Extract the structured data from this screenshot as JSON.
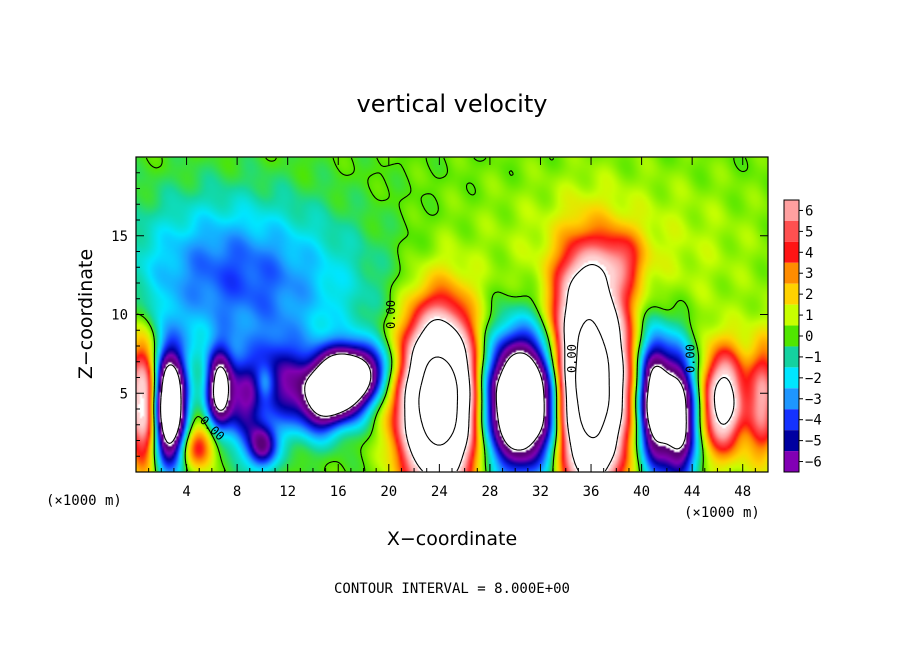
{
  "chart_data": {
    "type": "heatmap",
    "title": "vertical velocity",
    "xlabel": "X−coordinate",
    "ylabel": "Z−coordinate",
    "x_unit_left": "(×1000 m)",
    "x_unit_right": "(×1000 m)",
    "xlim": [
      0,
      50
    ],
    "ylim": [
      0,
      20
    ],
    "x_ticks": [
      4,
      8,
      12,
      16,
      20,
      24,
      28,
      32,
      36,
      40,
      44,
      48
    ],
    "y_ticks": [
      5,
      10,
      15
    ],
    "colorbar": {
      "ticks": [
        6,
        5,
        4,
        3,
        2,
        1,
        0,
        -1,
        -2,
        -3,
        -4,
        -5,
        -6
      ],
      "tick_labels": [
        "6",
        "5",
        "4",
        "3",
        "2",
        "1",
        "0",
        "−1",
        "−2",
        "−3",
        "−4",
        "−5",
        "−6"
      ],
      "colors": [
        "#ffa0a0",
        "#ff5050",
        "#ff1414",
        "#ff8c00",
        "#ffd200",
        "#c8ff00",
        "#50e600",
        "#14d2a0",
        "#00e6ff",
        "#1e96ff",
        "#1432ff",
        "#0000a0",
        "#8200b4"
      ]
    },
    "contour_labels": [
      "0.00",
      "0.00",
      "0.00",
      "0.00"
    ],
    "contour_interval_text": "CONTOUR INTERVAL = 8.000E+00",
    "features": [
      {
        "kind": "updraft",
        "x": 0.6,
        "z": 4.5,
        "w": 6
      },
      {
        "kind": "downdraft",
        "x": 2.5,
        "z": 4.5,
        "w": -12
      },
      {
        "kind": "updraft",
        "x": 5,
        "z": 1.5,
        "w": 4
      },
      {
        "kind": "downdraft",
        "x": 6.5,
        "z": 5,
        "w": -8
      },
      {
        "kind": "downdraft",
        "x": 10,
        "z": 1.5,
        "w": -5
      },
      {
        "kind": "downdraft",
        "x": 16,
        "z": 5.5,
        "w": -10
      },
      {
        "kind": "updraft",
        "x": 24,
        "z": 4.5,
        "w": 20
      },
      {
        "kind": "downdraft",
        "x": 30.5,
        "z": 4.5,
        "w": -14
      },
      {
        "kind": "updraft",
        "x": 36,
        "z": 5.5,
        "w": 20
      },
      {
        "kind": "downdraft",
        "x": 41,
        "z": 4.5,
        "w": -10
      },
      {
        "kind": "downdraft",
        "x": 43,
        "z": 3.5,
        "w": -9
      },
      {
        "kind": "updraft",
        "x": 46.5,
        "z": 4.5,
        "w": 9
      },
      {
        "kind": "updraft",
        "x": 49.5,
        "z": 4.5,
        "w": 5
      }
    ]
  }
}
